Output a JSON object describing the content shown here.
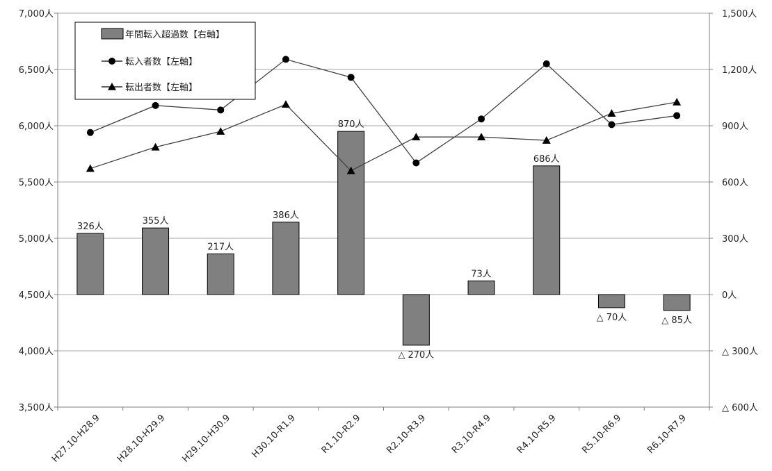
{
  "chart_data": {
    "type": "bar+line",
    "categories": [
      "H27.10-H28.9",
      "H28.10-H29.9",
      "H29.10-H30.9",
      "H30.10-R1.9",
      "R1.10-R2.9",
      "R2.10-R3.9",
      "R3.10-R4.9",
      "R4.10-R5.9",
      "R5.10-R6.9",
      "R6.10-R7.9"
    ],
    "left_axis": {
      "min": 3500,
      "max": 7000,
      "step": 500,
      "tick_labels": [
        "3,500人",
        "4,000人",
        "4,500人",
        "5,000人",
        "5,500人",
        "6,000人",
        "6,500人",
        "7,000人"
      ]
    },
    "right_axis": {
      "min": -600,
      "max": 1500,
      "step": 300,
      "tick_labels": [
        "△ 600人",
        "△ 300人",
        "0人",
        "300人",
        "600人",
        "900人",
        "1,200人",
        "1,500人"
      ]
    },
    "series": [
      {
        "name": "年間転入超過数【右軸】",
        "kind": "bar",
        "axis": "right",
        "color": "#808080",
        "values": [
          326,
          355,
          217,
          386,
          870,
          -270,
          73,
          686,
          -70,
          -85
        ],
        "labels": [
          "326人",
          "355人",
          "217人",
          "386人",
          "870人",
          "△ 270人",
          "73人",
          "686人",
          "△ 70人",
          "△ 85人"
        ]
      },
      {
        "name": "転入者数【左軸】",
        "kind": "line",
        "marker": "circle",
        "axis": "left",
        "color": "#000000",
        "values": [
          5940,
          6180,
          6140,
          6590,
          6430,
          5670,
          6060,
          6550,
          6010,
          6090
        ]
      },
      {
        "name": "転出者数【左軸】",
        "kind": "line",
        "marker": "triangle",
        "axis": "left",
        "color": "#000000",
        "values": [
          5620,
          5810,
          5950,
          6190,
          5600,
          5900,
          5900,
          5870,
          6110,
          6210
        ]
      }
    ],
    "grid": "horizontal",
    "legend": "top-left"
  }
}
